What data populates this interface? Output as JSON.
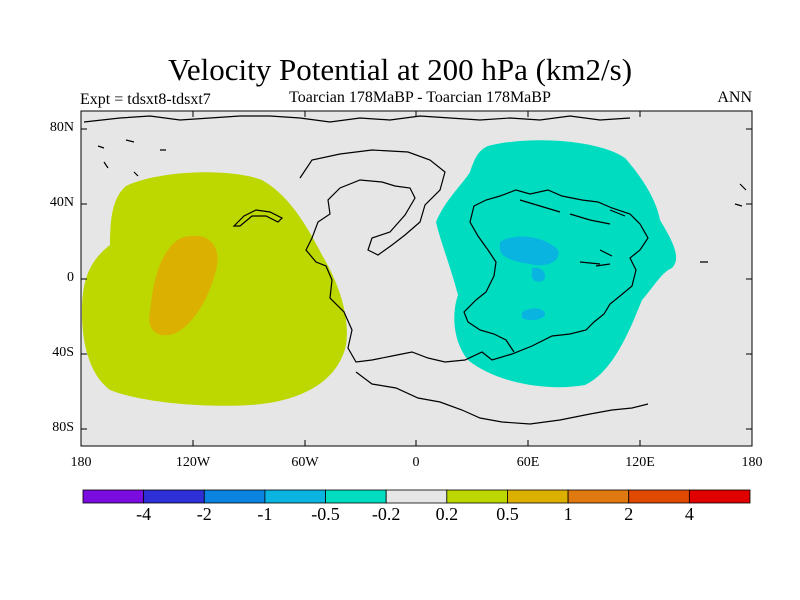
{
  "title": "Velocity Potential at 200 hPa (km2/s)",
  "subtitle_left": "Expt = tdsxt8-tdsxt7",
  "subtitle_center": "Toarcian 178MaBP - Toarcian 178MaBP",
  "subtitle_right": "ANN",
  "lat_labels": [
    "80N",
    "40N",
    "0",
    "40S",
    "80S"
  ],
  "lon_labels": [
    "180",
    "120W",
    "60W",
    "0",
    "60E",
    "120E",
    "180"
  ],
  "colorbar": {
    "colors": [
      "#7a0ce0",
      "#2f2fd8",
      "#0a84e0",
      "#0ab4e0",
      "#00dcc0",
      "#e6e6e6",
      "#bcd800",
      "#dcb000",
      "#e07a10",
      "#e04a00",
      "#e00000"
    ],
    "labels": [
      "-4",
      "-2",
      "-1",
      "-0.5",
      "-0.2",
      "0.2",
      "0.5",
      "1",
      "2",
      "4"
    ]
  },
  "field_colors": {
    "background": "#e6e6e6",
    "positive_weak": "#bcd800",
    "positive_mid": "#dcb000",
    "negative_weak": "#00dcc0",
    "negative_mid": "#0ab4e0"
  }
}
